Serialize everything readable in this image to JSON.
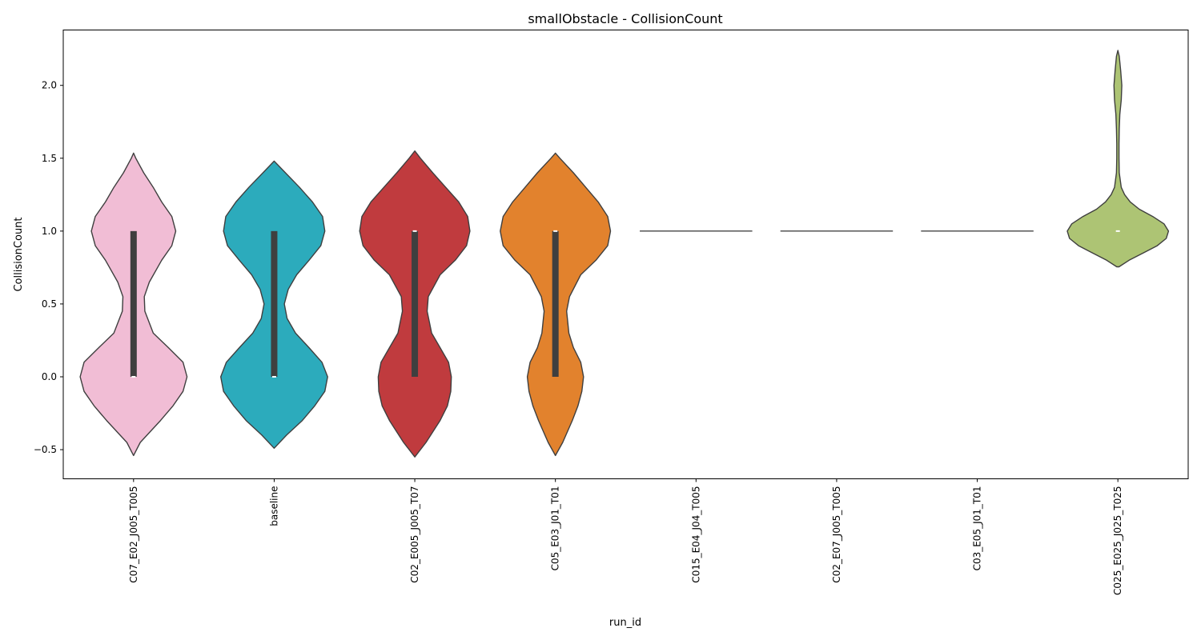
{
  "chart_data": {
    "type": "violin",
    "title": "smallObstacle - CollisionCount",
    "xlabel": "run_id",
    "ylabel": "CollisionCount",
    "ylim": [
      -0.7,
      2.38
    ],
    "yticks": [
      -0.5,
      0.0,
      0.5,
      1.0,
      1.5,
      2.0
    ],
    "ytick_labels": [
      "−0.5",
      "0.0",
      "0.5",
      "1.0",
      "1.5",
      "2.0"
    ],
    "grid": false,
    "categories": [
      "C07_E02_J005_T005",
      "baseline",
      "C02_E005_J005_T07",
      "C05_E03_J01_T01",
      "C015_E04_J04_T005",
      "C02_E07_J005_T005",
      "C03_E05_J01_T01",
      "C025_E025_J025_T025"
    ],
    "series": [
      {
        "color": "#f1bdd5",
        "density": [
          [
            -0.54,
            0
          ],
          [
            -0.45,
            0.12
          ],
          [
            -0.3,
            0.48
          ],
          [
            -0.2,
            0.7
          ],
          [
            -0.1,
            0.88
          ],
          [
            0,
            0.95
          ],
          [
            0.1,
            0.88
          ],
          [
            0.2,
            0.62
          ],
          [
            0.3,
            0.35
          ],
          [
            0.45,
            0.2
          ],
          [
            0.55,
            0.19
          ],
          [
            0.65,
            0.28
          ],
          [
            0.8,
            0.5
          ],
          [
            0.9,
            0.68
          ],
          [
            1.0,
            0.75
          ],
          [
            1.1,
            0.68
          ],
          [
            1.2,
            0.5
          ],
          [
            1.3,
            0.35
          ],
          [
            1.4,
            0.18
          ],
          [
            1.5,
            0.04
          ],
          [
            1.535,
            0
          ]
        ],
        "median": 0.0,
        "q1": 0.0,
        "q3": 1.0
      },
      {
        "color": "#2cabbc",
        "density": [
          [
            -0.49,
            0
          ],
          [
            -0.4,
            0.22
          ],
          [
            -0.3,
            0.5
          ],
          [
            -0.2,
            0.72
          ],
          [
            -0.1,
            0.9
          ],
          [
            0,
            0.95
          ],
          [
            0.1,
            0.85
          ],
          [
            0.2,
            0.62
          ],
          [
            0.3,
            0.38
          ],
          [
            0.4,
            0.23
          ],
          [
            0.5,
            0.18
          ],
          [
            0.6,
            0.25
          ],
          [
            0.7,
            0.4
          ],
          [
            0.8,
            0.62
          ],
          [
            0.9,
            0.83
          ],
          [
            1.0,
            0.9
          ],
          [
            1.1,
            0.86
          ],
          [
            1.2,
            0.68
          ],
          [
            1.3,
            0.45
          ],
          [
            1.4,
            0.2
          ],
          [
            1.48,
            0
          ]
        ],
        "median": 0.0,
        "q1": 0.0,
        "q3": 1.0
      },
      {
        "color": "#c03b3e",
        "density": [
          [
            -0.55,
            0
          ],
          [
            -0.45,
            0.2
          ],
          [
            -0.3,
            0.45
          ],
          [
            -0.2,
            0.58
          ],
          [
            -0.1,
            0.64
          ],
          [
            0,
            0.65
          ],
          [
            0.1,
            0.6
          ],
          [
            0.2,
            0.45
          ],
          [
            0.3,
            0.3
          ],
          [
            0.45,
            0.22
          ],
          [
            0.55,
            0.24
          ],
          [
            0.7,
            0.45
          ],
          [
            0.8,
            0.72
          ],
          [
            0.9,
            0.92
          ],
          [
            1.0,
            0.98
          ],
          [
            1.1,
            0.94
          ],
          [
            1.2,
            0.78
          ],
          [
            1.3,
            0.55
          ],
          [
            1.4,
            0.32
          ],
          [
            1.5,
            0.1
          ],
          [
            1.55,
            0
          ]
        ],
        "median": 1.0,
        "q1": 0.0,
        "q3": 1.0
      },
      {
        "color": "#e2822d",
        "density": [
          [
            -0.54,
            0
          ],
          [
            -0.45,
            0.13
          ],
          [
            -0.3,
            0.3
          ],
          [
            -0.2,
            0.4
          ],
          [
            -0.1,
            0.47
          ],
          [
            0,
            0.5
          ],
          [
            0.1,
            0.45
          ],
          [
            0.2,
            0.32
          ],
          [
            0.3,
            0.24
          ],
          [
            0.45,
            0.2
          ],
          [
            0.55,
            0.25
          ],
          [
            0.7,
            0.45
          ],
          [
            0.8,
            0.72
          ],
          [
            0.9,
            0.93
          ],
          [
            1.0,
            0.98
          ],
          [
            1.1,
            0.93
          ],
          [
            1.2,
            0.76
          ],
          [
            1.3,
            0.54
          ],
          [
            1.4,
            0.32
          ],
          [
            1.5,
            0.08
          ],
          [
            1.535,
            0
          ]
        ],
        "median": 1.0,
        "q1": 0.0,
        "q3": 1.0
      },
      {
        "color": "#444444",
        "constant": 1.0,
        "width": 0.8
      },
      {
        "color": "#444444",
        "constant": 1.0,
        "width": 0.8
      },
      {
        "color": "#444444",
        "constant": 1.0,
        "width": 0.8
      },
      {
        "color": "#adc474",
        "density": [
          [
            0.755,
            0.02
          ],
          [
            0.8,
            0.2
          ],
          [
            0.85,
            0.45
          ],
          [
            0.9,
            0.7
          ],
          [
            0.95,
            0.86
          ],
          [
            1.0,
            0.9
          ],
          [
            1.05,
            0.82
          ],
          [
            1.1,
            0.62
          ],
          [
            1.15,
            0.38
          ],
          [
            1.2,
            0.22
          ],
          [
            1.25,
            0.12
          ],
          [
            1.3,
            0.06
          ],
          [
            1.4,
            0.025
          ],
          [
            1.5,
            0.02
          ],
          [
            1.6,
            0.02
          ],
          [
            1.7,
            0.025
          ],
          [
            1.8,
            0.035
          ],
          [
            1.9,
            0.06
          ],
          [
            2.0,
            0.07
          ],
          [
            2.1,
            0.05
          ],
          [
            2.2,
            0.025
          ],
          [
            2.24,
            0
          ]
        ],
        "median": 1.0,
        "q1": 1.0,
        "q3": 1.0
      }
    ]
  }
}
